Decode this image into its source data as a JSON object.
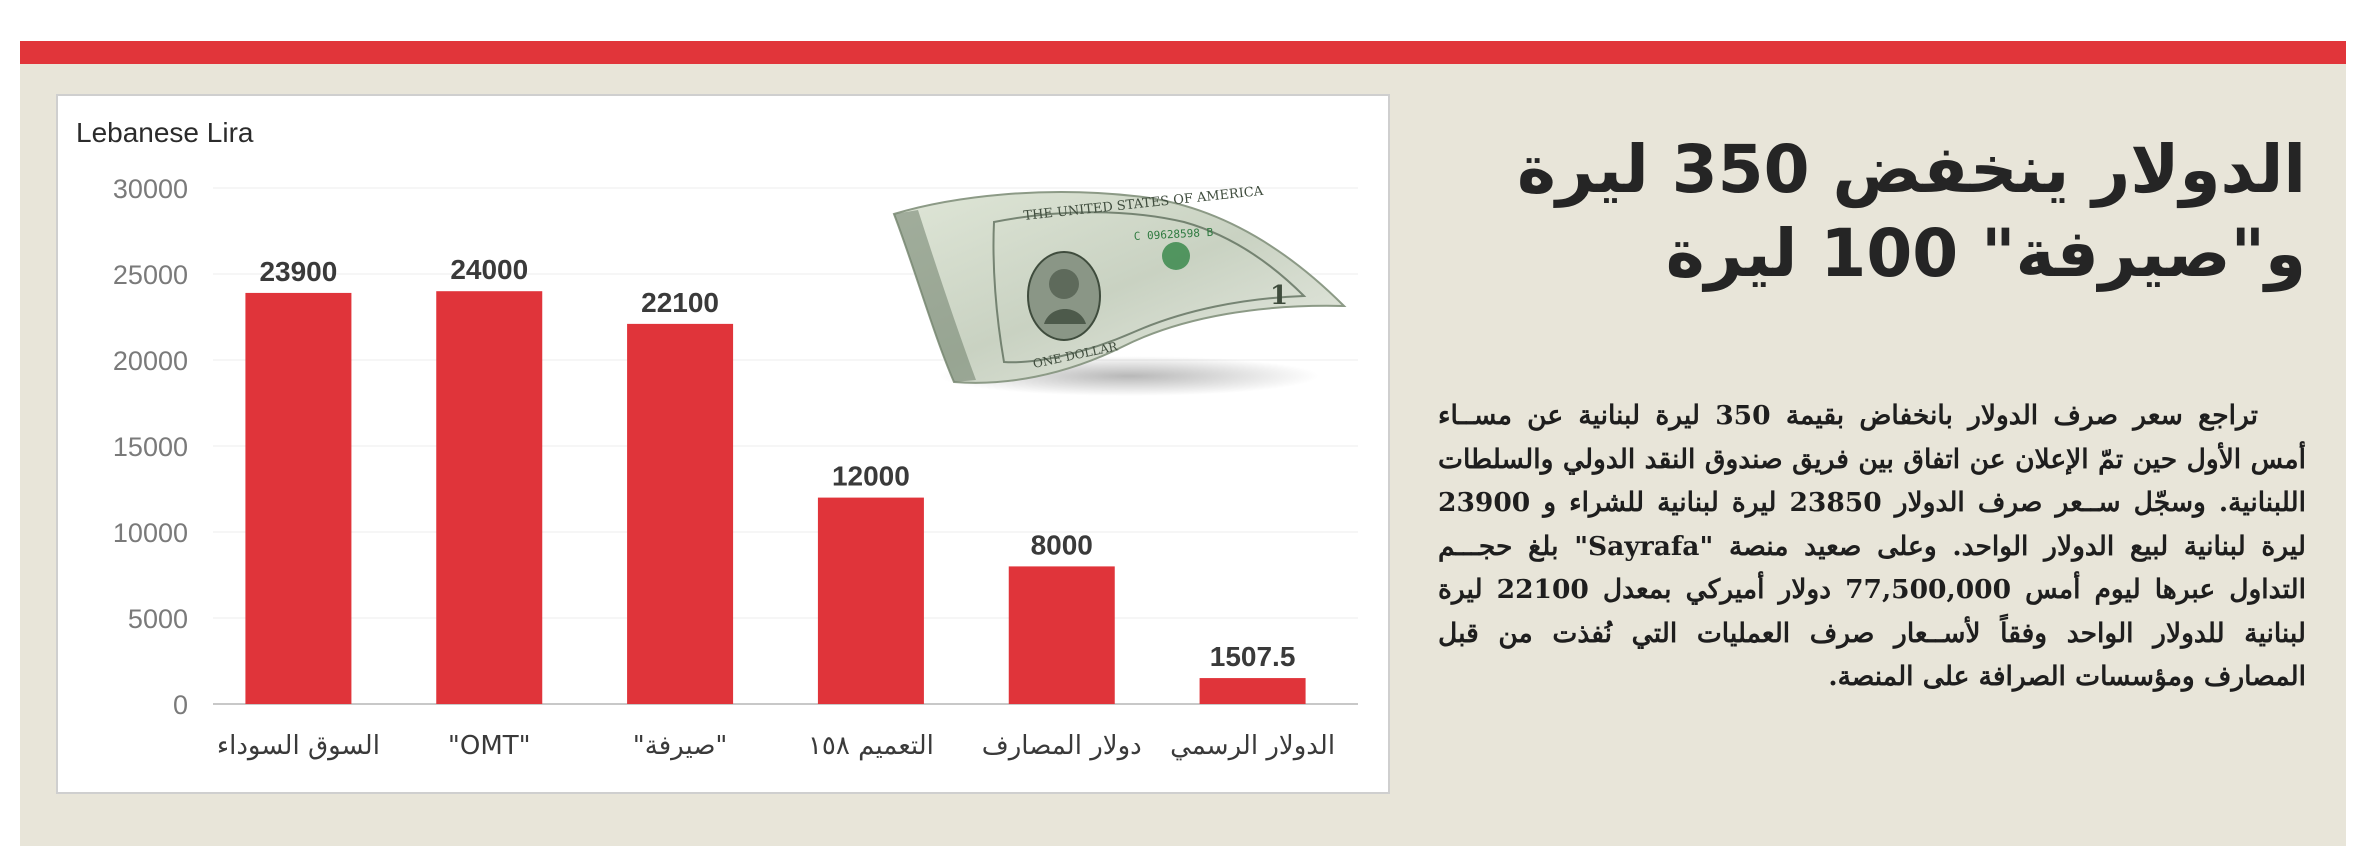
{
  "article": {
    "headline": "الدولار ينخفض 350 ليرة و\"صيرفة\" 100 ليرة",
    "body": "تراجع سعر صرف الدولار بانخفاض بقيمة 350 ليرة لبنانية عن مســاء أمس الأول حين تمّ الإعلان عن اتفاق بين فريق صندوق النقد الدولي والسلطات اللبنانية. وسجّل ســعر صرف الدولار 23850 ليرة لبنانية للشراء و 23900 ليرة لبنانية لبيع الدولار الواحد.  وعلى صعيد منصة \"Sayrafa\" بلغ حجـــم التداول عبرها ليوم أمس 77,500,000 دولار أميركي بمعدل 22100 ليرة لبنانية للدولار الواحد وفقاً لأســعار صرف العمليات التي نُفذت من قبل المصارف ومؤسسات الصرافة على المنصة."
  },
  "illustration": {
    "icon": "dollar-bill-icon",
    "bill_text": "THE UNITED STATES OF AMERICA",
    "bill_serial": "C 09628598 B",
    "bill_denomination": "1",
    "bill_bottom_text": "ONE DOLLAR"
  },
  "colors": {
    "accent": "#e1353a",
    "bar": "#e0343a",
    "panel": "#e8e5d9"
  },
  "chart_data": {
    "type": "bar",
    "title": "",
    "ylabel": "Lebanese Lira",
    "xlabel": "",
    "categories": [
      "السوق السوداء",
      "\"OMT\"",
      "\"صيرفة\"",
      "التعميم ١٥٨",
      "دولار المصارف",
      "الدولار الرسمي"
    ],
    "values": [
      23900,
      24000,
      22100,
      12000,
      8000,
      1507.5
    ],
    "value_labels": [
      "23900",
      "24000",
      "22100",
      "12000",
      "8000",
      "1507.5"
    ],
    "yticks": [
      0,
      5000,
      10000,
      15000,
      20000,
      25000,
      30000
    ],
    "ylim": [
      0,
      30000
    ],
    "grid": true,
    "legend": "none"
  }
}
